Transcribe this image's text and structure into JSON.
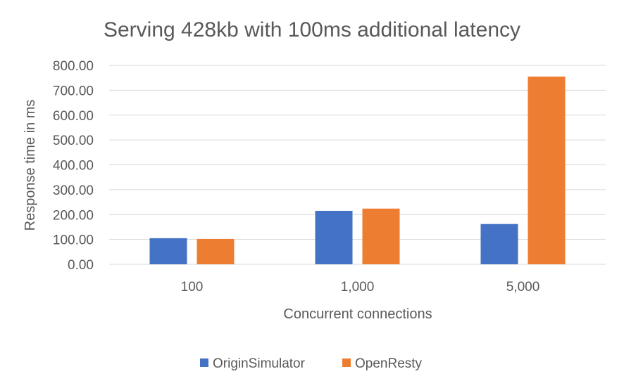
{
  "chart_data": {
    "type": "bar",
    "title": "Serving 428kb with 100ms additional latency",
    "xlabel": "Concurrent connections",
    "ylabel": "Response time in ms",
    "categories": [
      "100",
      "1,000",
      "5,000"
    ],
    "series": [
      {
        "name": "OriginSimulator",
        "color": "#4472c4",
        "values": [
          105,
          215,
          162
        ]
      },
      {
        "name": "OpenResty",
        "color": "#ed7d31",
        "values": [
          102,
          224,
          755
        ]
      }
    ],
    "ylim": [
      0,
      800
    ],
    "yticks": [
      "0.00",
      "100.00",
      "200.00",
      "300.00",
      "400.00",
      "500.00",
      "600.00",
      "700.00",
      "800.00"
    ],
    "grid": true,
    "legend_position": "bottom"
  }
}
